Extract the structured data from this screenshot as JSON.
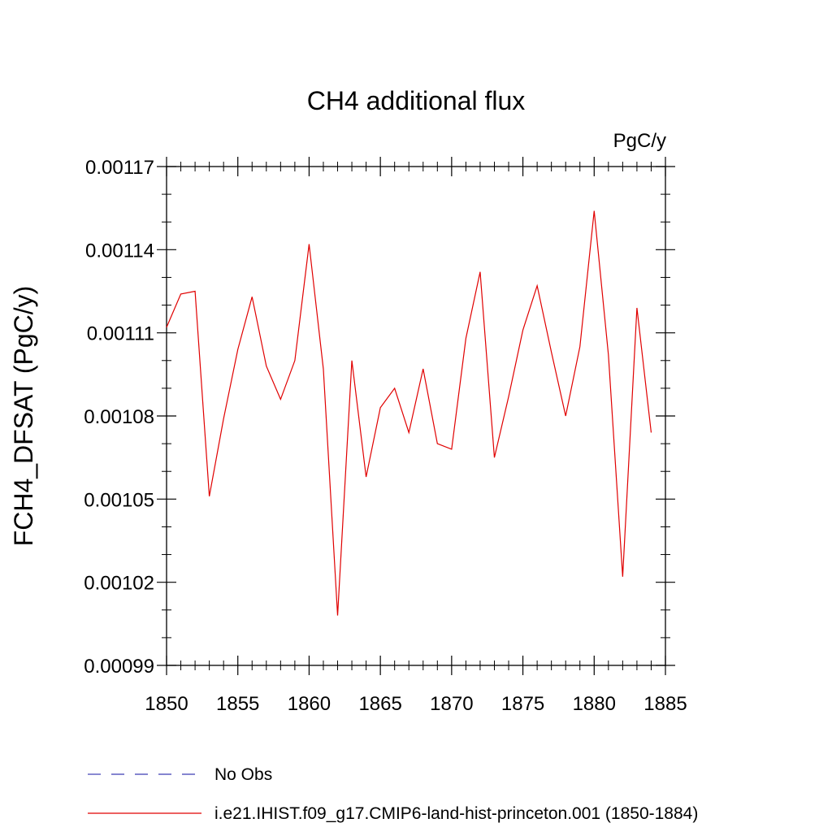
{
  "chart_data": {
    "type": "line",
    "title": "CH4 additional flux",
    "units": "PgC/y",
    "ylabel": "FCH4_DFSAT  (PgC/y)",
    "xlabel": "",
    "xlim": [
      1850,
      1885
    ],
    "ylim": [
      0.00099,
      0.00117
    ],
    "x_ticks": [
      1850,
      1855,
      1860,
      1865,
      1870,
      1875,
      1880,
      1885
    ],
    "x_tick_labels": [
      "1850",
      "1855",
      "1860",
      "1865",
      "1870",
      "1875",
      "1880",
      "1885"
    ],
    "y_ticks": [
      0.00099,
      0.00102,
      0.00105,
      0.00108,
      0.00111,
      0.00114,
      0.00117
    ],
    "y_tick_labels": [
      "0.00099",
      "0.00102",
      "0.00105",
      "0.00108",
      "0.00111",
      "0.00114",
      "0.00117"
    ],
    "grid": false,
    "legend_position": "bottom",
    "legend": [
      {
        "label": "No Obs",
        "color": "#3c3cb4",
        "style": "dashed"
      },
      {
        "label": "i.e21.IHIST.f09_g17.CMIP6-land-hist-princeton.001 (1850-1884)",
        "color": "#e00000",
        "style": "solid"
      }
    ],
    "series": [
      {
        "name": "i.e21.IHIST.f09_g17.CMIP6-land-hist-princeton.001 (1850-1884)",
        "color": "#e00000",
        "x": [
          1850,
          1851,
          1852,
          1853,
          1854,
          1855,
          1856,
          1857,
          1858,
          1859,
          1860,
          1861,
          1862,
          1863,
          1864,
          1865,
          1866,
          1867,
          1868,
          1869,
          1870,
          1871,
          1872,
          1873,
          1874,
          1875,
          1876,
          1877,
          1878,
          1879,
          1880,
          1881,
          1882,
          1883,
          1884
        ],
        "values": [
          0.001112,
          0.001124,
          0.001125,
          0.001051,
          0.001079,
          0.001104,
          0.001123,
          0.001098,
          0.001086,
          0.0011,
          0.001142,
          0.001097,
          0.001008,
          0.0011,
          0.001058,
          0.001083,
          0.00109,
          0.001074,
          0.001097,
          0.00107,
          0.001068,
          0.001108,
          0.001132,
          0.001065,
          0.001087,
          0.001111,
          0.001127,
          0.001103,
          0.00108,
          0.001105,
          0.001154,
          0.001102,
          0.001022,
          0.001119,
          0.001074
        ]
      }
    ]
  }
}
